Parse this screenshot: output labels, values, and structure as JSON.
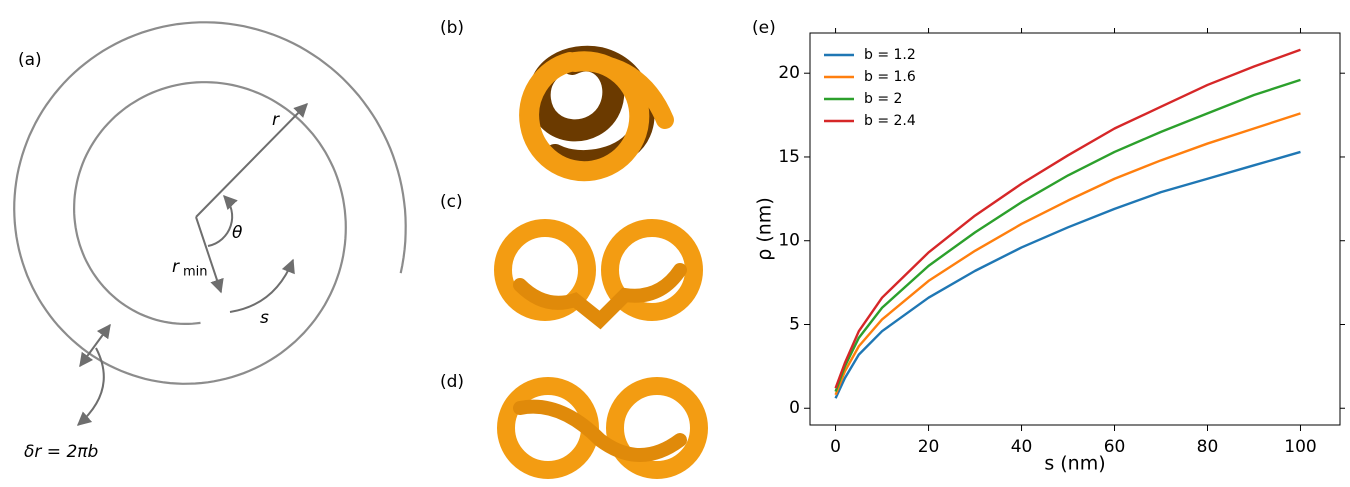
{
  "panels": {
    "a": "(a)",
    "b": "(b)",
    "c": "(c)",
    "d": "(d)"
  },
  "diagram": {
    "r": "r",
    "theta": "θ",
    "rmin": "r",
    "rmin_sub": "min",
    "s": "s",
    "dr": "δr = 2πb"
  },
  "chart_data": {
    "type": "line",
    "title": "(e)",
    "x_label": "s (nm)",
    "y_label": "ρ (nm)",
    "x": [
      0,
      2,
      5,
      10,
      20,
      30,
      40,
      50,
      60,
      70,
      80,
      90,
      100
    ],
    "series": [
      {
        "name": "b = 1.2",
        "color": "#1f77b4",
        "values": [
          0.6,
          1.8,
          3.2,
          4.6,
          6.6,
          8.2,
          9.6,
          10.8,
          11.9,
          12.9,
          13.7,
          14.5,
          15.3
        ]
      },
      {
        "name": "b = 1.6",
        "color": "#ff7f0e",
        "values": [
          0.8,
          2.2,
          3.7,
          5.3,
          7.6,
          9.4,
          11.0,
          12.4,
          13.7,
          14.8,
          15.8,
          16.7,
          17.6
        ]
      },
      {
        "name": "b = 2",
        "color": "#2ca02c",
        "values": [
          1.0,
          2.5,
          4.2,
          6.0,
          8.5,
          10.5,
          12.3,
          13.9,
          15.3,
          16.5,
          17.6,
          18.7,
          19.6
        ]
      },
      {
        "name": "b = 2.4",
        "color": "#d62728",
        "values": [
          1.2,
          2.7,
          4.6,
          6.6,
          9.3,
          11.5,
          13.4,
          15.1,
          16.7,
          18.0,
          19.3,
          20.4,
          21.4
        ]
      }
    ],
    "xlim": [
      -5.5,
      108.5
    ],
    "ylim": [
      -1,
      22.4
    ],
    "xticks": [
      0,
      20,
      40,
      60,
      80,
      100
    ],
    "yticks": [
      0,
      5,
      10,
      15,
      20
    ],
    "legend": "upper left"
  }
}
